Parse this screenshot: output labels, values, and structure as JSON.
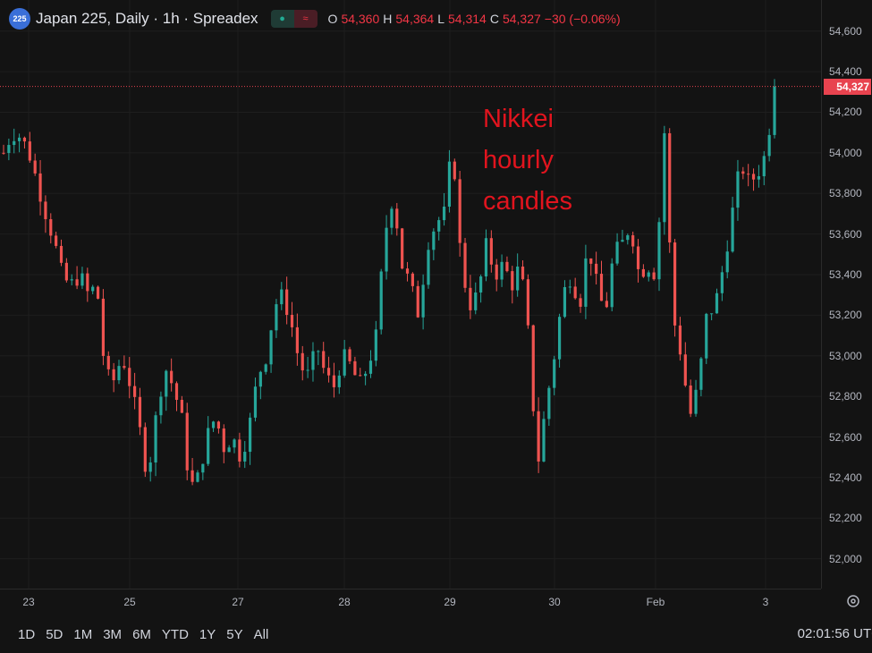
{
  "legend": {
    "symbol_badge": "225",
    "title": "Japan 225, Daily · 1h · Spreadex",
    "pill_icons": [
      "dot-icon",
      "wave-icon"
    ],
    "o_label": "O",
    "o_value": "54,360",
    "h_label": "H",
    "h_value": "54,364",
    "l_label": "L",
    "l_value": "54,314",
    "c_label": "C",
    "c_value": "54,327",
    "change": "−30 (−0.06%)"
  },
  "annotation": {
    "line1": "Nikkei",
    "line2": "hourly",
    "line3": "candles"
  },
  "price_axis": {
    "ticks": [
      "54,600",
      "54,400",
      "54,200",
      "54,000",
      "53,800",
      "53,600",
      "53,400",
      "53,200",
      "53,000",
      "52,800",
      "52,600",
      "52,400",
      "52,200",
      "52,000"
    ],
    "last_price_label": "54,327"
  },
  "time_axis": {
    "ticks": [
      "23",
      "25",
      "27",
      "28",
      "29",
      "30",
      "Feb",
      "3"
    ]
  },
  "ranges": [
    "1D",
    "5D",
    "1M",
    "3M",
    "6M",
    "YTD",
    "1Y",
    "5Y",
    "All"
  ],
  "clock": "02:01:56 UTC",
  "colors": {
    "up": "#26a69a",
    "down": "#ef5350",
    "background": "#131313",
    "last_line": "#e8434f"
  },
  "chart_data": {
    "type": "candlestick",
    "title": "Japan 225, Daily · 1h · Spreadex",
    "ylim": [
      51950,
      54700
    ],
    "x_ticks": [
      "23",
      "25",
      "27",
      "28",
      "29",
      "30",
      "Feb",
      "3"
    ],
    "last_price": 54327,
    "close_path": [
      54000,
      54100,
      54080,
      54000,
      53850,
      53700,
      53560,
      53380,
      53350,
      53400,
      53300,
      53350,
      52900,
      52880,
      53000,
      52850,
      52650,
      52400,
      52700,
      52950,
      52850,
      52700,
      52350,
      52400,
      52600,
      52700,
      52550,
      52600,
      52500,
      52650,
      52900,
      53000,
      53250,
      53300,
      53150,
      52950,
      52900,
      53050,
      52900,
      52850,
      53000,
      52950,
      52850,
      52950,
      53100,
      53600,
      53800,
      53450,
      53350,
      53200,
      53550,
      53650,
      53700,
      54050,
      53450,
      53250,
      53300,
      53550,
      53400,
      53450,
      53350,
      53450,
      53080,
      52450,
      52750,
      53000,
      53300,
      53400,
      53250,
      53550,
      53350,
      53200,
      53500,
      53550,
      53650,
      53400,
      53450,
      53400,
      54100,
      53200,
      53000,
      52700,
      52850,
      53200,
      53250,
      53450,
      53700,
      53950,
      53850,
      53900,
      54000,
      54327
    ]
  }
}
